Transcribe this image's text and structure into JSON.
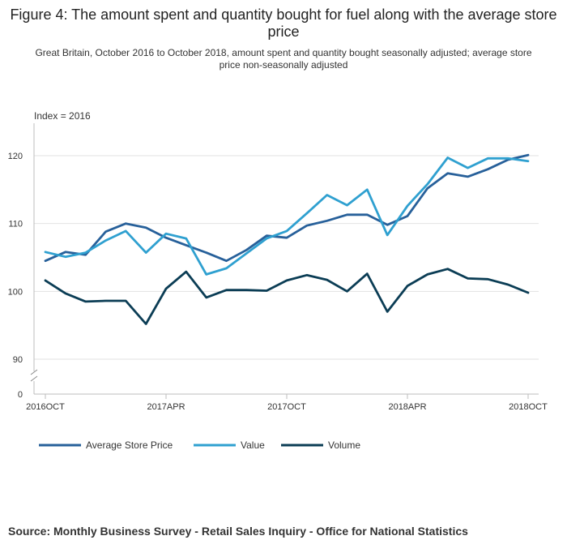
{
  "chart_data": {
    "type": "line",
    "title": "Figure 4: The amount spent and quantity bought for fuel along with the average store price",
    "subtitle": "Great Britain, October 2016 to October 2018, amount spent and quantity bought seasonally adjusted; average store price non-seasonally adjusted",
    "ylabel": "Index = 2016",
    "xlabel": "",
    "ylim": [
      0,
      125
    ],
    "y_ticks": [
      0,
      90,
      100,
      110,
      120
    ],
    "y_axis_break": true,
    "x_tick_labels": [
      "2016OCT",
      "2017APR",
      "2017OCT",
      "2018APR",
      "2018OCT"
    ],
    "x_tick_index": [
      0,
      6,
      12,
      18,
      24
    ],
    "legend_position": "bottom-left",
    "series": [
      {
        "name": "Average Store Price",
        "color": "#27609a",
        "values": [
          104.5,
          105.8,
          105.4,
          108.8,
          110.0,
          109.4,
          107.9,
          106.8,
          105.7,
          104.5,
          106.1,
          108.2,
          107.9,
          109.7,
          110.4,
          111.3,
          111.3,
          109.8,
          111.1,
          115.2,
          117.4,
          116.9,
          118.0,
          119.4,
          120.1
        ]
      },
      {
        "name": "Value",
        "color": "#2fa0d0",
        "values": [
          105.8,
          105.1,
          105.7,
          107.5,
          108.9,
          105.7,
          108.5,
          107.8,
          102.5,
          103.4,
          105.6,
          107.8,
          108.9,
          111.5,
          114.2,
          112.7,
          115.0,
          108.3,
          112.6,
          115.8,
          119.7,
          118.2,
          119.6,
          119.6,
          119.2
        ]
      },
      {
        "name": "Volume",
        "color": "#0b3d55",
        "values": [
          101.6,
          99.7,
          98.5,
          98.6,
          98.6,
          95.2,
          100.4,
          102.9,
          99.1,
          100.2,
          100.2,
          100.1,
          101.6,
          102.4,
          101.7,
          100.0,
          102.6,
          97.0,
          100.8,
          102.5,
          103.3,
          101.9,
          101.8,
          101.0,
          99.8
        ]
      }
    ]
  },
  "source": "Source: Monthly Business Survey - Retail Sales Inquiry - Office for National Statistics"
}
